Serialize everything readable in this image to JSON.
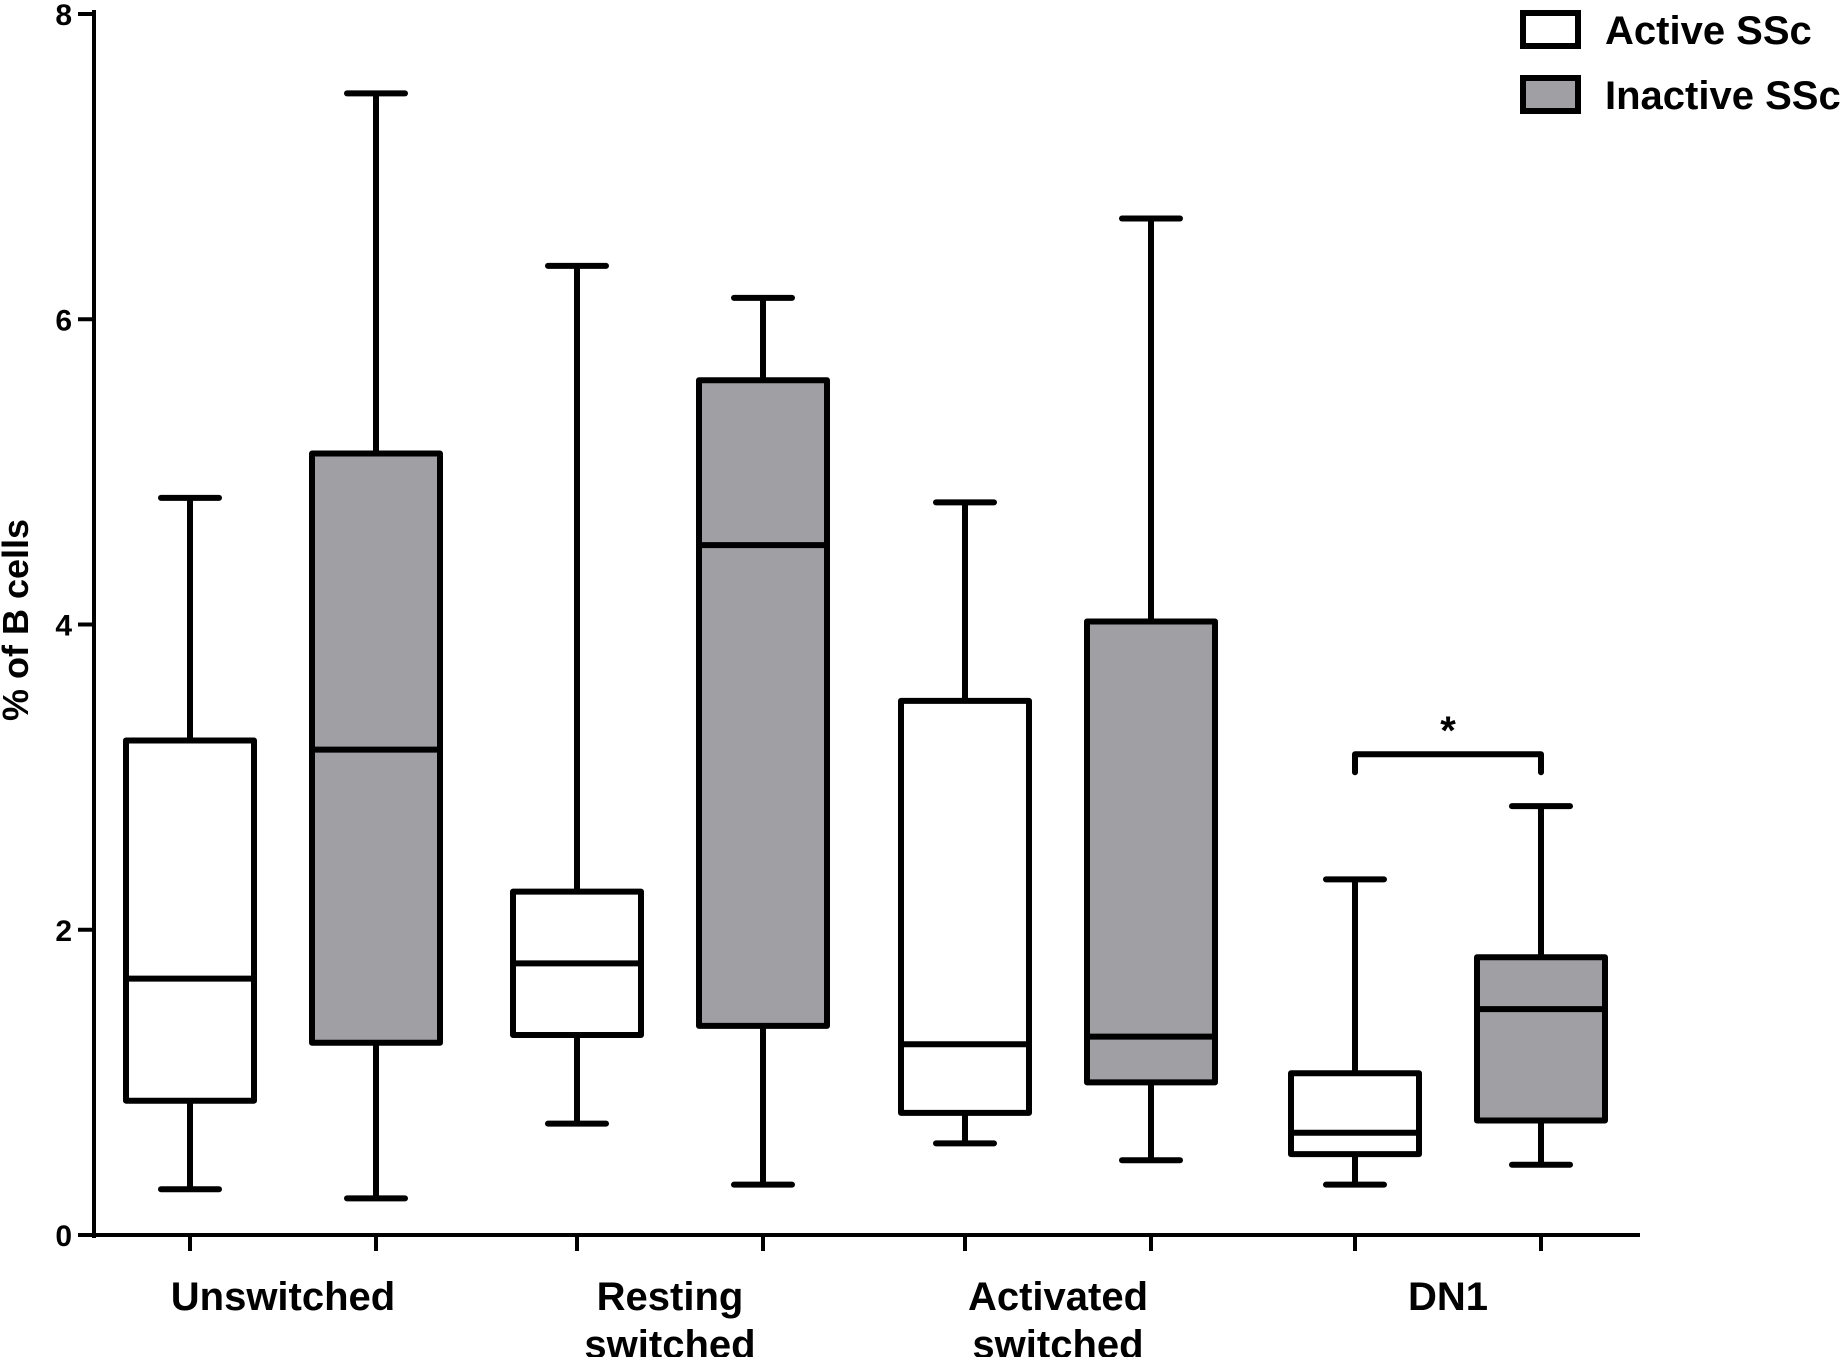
{
  "chart_data": {
    "type": "box",
    "title": "",
    "xlabel": "",
    "ylabel": "% of B cells",
    "ylim": [
      0,
      8
    ],
    "yticks": [
      0,
      2,
      4,
      6,
      8
    ],
    "grid": false,
    "legend_position": "top-right",
    "categories": [
      [
        "Unswitched"
      ],
      [
        "Resting",
        "switched"
      ],
      [
        "Activated",
        "switched"
      ],
      [
        "DN1"
      ]
    ],
    "series": [
      {
        "name": "Active SSc",
        "color": "#ffffff",
        "boxes": [
          {
            "min": 0.3,
            "q1": 0.88,
            "median": 1.68,
            "q3": 3.24,
            "max": 4.83
          },
          {
            "min": 0.73,
            "q1": 1.31,
            "median": 1.78,
            "q3": 2.25,
            "max": 6.35
          },
          {
            "min": 0.6,
            "q1": 0.8,
            "median": 1.25,
            "q3": 3.5,
            "max": 4.8
          },
          {
            "min": 0.33,
            "q1": 0.53,
            "median": 0.67,
            "q3": 1.06,
            "max": 2.33
          }
        ]
      },
      {
        "name": "Inactive SSc",
        "color": "#a0a0a4",
        "boxes": [
          {
            "min": 0.24,
            "q1": 1.26,
            "median": 3.18,
            "q3": 5.12,
            "max": 7.48
          },
          {
            "min": 0.33,
            "q1": 1.37,
            "median": 4.52,
            "q3": 5.6,
            "max": 6.14
          },
          {
            "min": 0.49,
            "q1": 1.0,
            "median": 1.3,
            "q3": 4.02,
            "max": 6.66
          },
          {
            "min": 0.46,
            "q1": 0.75,
            "median": 1.48,
            "q3": 1.82,
            "max": 2.81
          }
        ]
      }
    ],
    "annotations": [
      {
        "text": "*",
        "category": "DN1",
        "bracket_y": 3.15
      }
    ]
  }
}
